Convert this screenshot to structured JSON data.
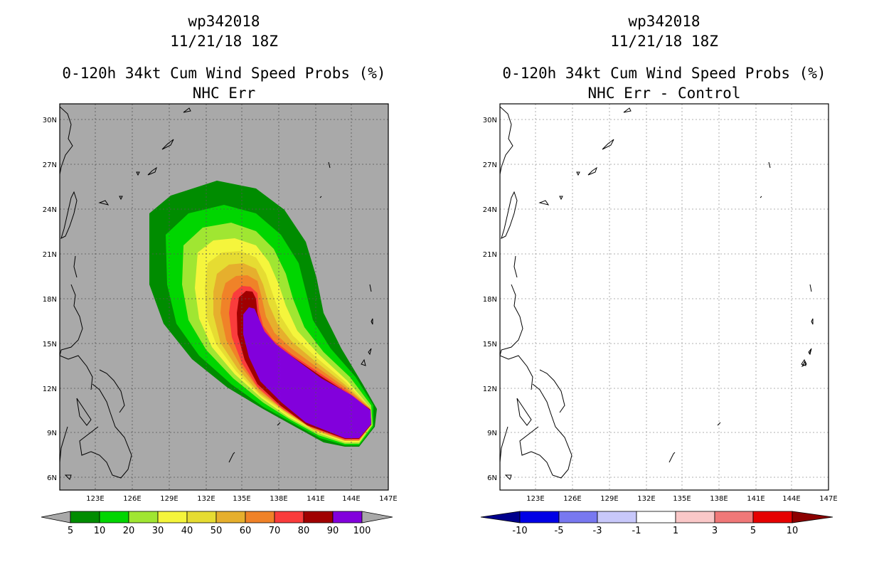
{
  "left_panel": {
    "title_line1": "wp342018",
    "title_line2": "11/21/18 18Z",
    "title_line3": "0-120h 34kt Cum Wind Speed Probs (%)",
    "title_line4": "NHC Err",
    "background_color": "#a9a9a9",
    "colorbar": {
      "labels": [
        "5",
        "10",
        "20",
        "30",
        "40",
        "50",
        "60",
        "70",
        "80",
        "90",
        "100"
      ],
      "colors": [
        "#008c00",
        "#00d600",
        "#a0e632",
        "#f5f53c",
        "#e6dc32",
        "#e6af2d",
        "#f08228",
        "#fa3c3c",
        "#a00000",
        "#8200dc"
      ]
    }
  },
  "right_panel": {
    "title_line1": "wp342018",
    "title_line2": "11/21/18 18Z",
    "title_line3": "0-120h 34kt Cum Wind Speed Probs (%)",
    "title_line4": "NHC Err - Control",
    "background_color": "#ffffff",
    "colorbar": {
      "labels": [
        "-10",
        "-5",
        "-3",
        "-1",
        "1",
        "3",
        "5",
        "10"
      ],
      "colors": [
        "#00008c",
        "#0000e6",
        "#7878f0",
        "#c8c8fa",
        "#ffffff",
        "#fac8c8",
        "#f07878",
        "#e60000",
        "#8c0000"
      ]
    }
  },
  "axes": {
    "lat_labels": [
      "30N",
      "27N",
      "24N",
      "21N",
      "18N",
      "15N",
      "12N",
      "9N",
      "6N"
    ],
    "lon_labels": [
      "123E",
      "126E",
      "129E",
      "132E",
      "135E",
      "138E",
      "141E",
      "144E",
      "147E"
    ]
  }
}
